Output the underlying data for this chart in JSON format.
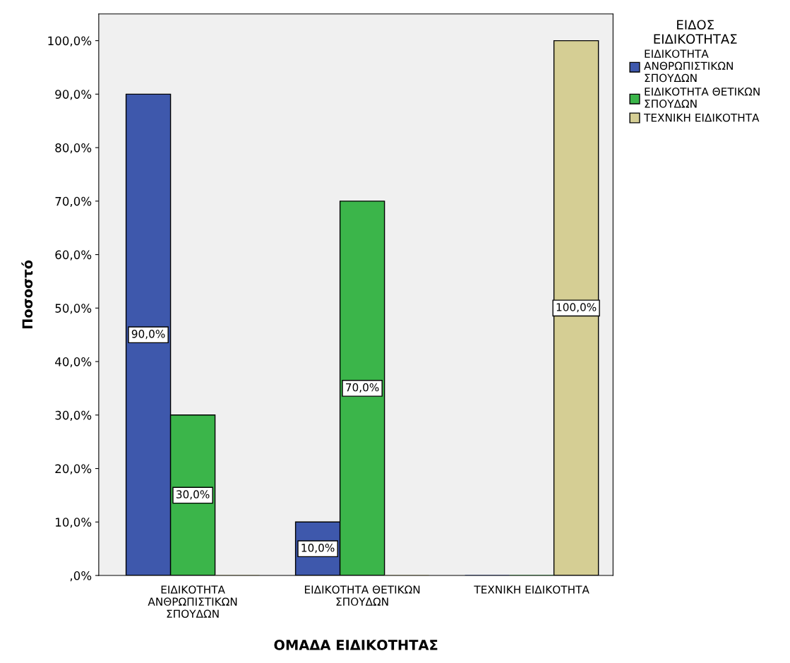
{
  "chart_data": {
    "type": "bar",
    "xlabel": "ΟΜΑΔΑ ΕΙΔΙΚΟΤΗΤΑΣ",
    "ylabel": "Ποσοστό",
    "legend_title": "ΕΙΔΟΣ\nΕΙΔΙΚΟΤΗΤΑΣ",
    "legend": "top right",
    "categories": [
      "ΕΙΔΙΚΟΤΗΤΑ\nΑΝΘΡΩΠΙΣΤΙΚΩΝ\nΣΠΟΥΔΩΝ",
      "ΕΙΔΙΚΟΤΗΤΑ ΘΕΤΙΚΩΝ\nΣΠΟΥΔΩΝ",
      "ΤΕΧΝΙΚΗ ΕΙΔΙΚΟΤΗΤΑ"
    ],
    "series": [
      {
        "name": "ΕΙΔΙΚΟΤΗΤΑ\nΑΝΘΡΩΠΙΣΤΙΚΩΝ\nΣΠΟΥΔΩΝ",
        "color": "#3e58ac",
        "values": [
          90,
          10,
          0
        ],
        "value_labels": [
          "90,0%",
          "10,0%",
          null
        ]
      },
      {
        "name": "ΕΙΔΙΚΟΤΗΤΑ ΘΕΤΙΚΩΝ\nΣΠΟΥΔΩΝ",
        "color": "#3bb54a",
        "values": [
          30,
          70,
          0
        ],
        "value_labels": [
          "30,0%",
          "70,0%",
          null
        ]
      },
      {
        "name": "ΤΕΧΝΙΚΗ ΕΙΔΙΚΟΤΗΤΑ",
        "color": "#d5ce94",
        "values": [
          0,
          0,
          100
        ],
        "value_labels": [
          null,
          null,
          "100,0%"
        ]
      }
    ],
    "ylim": [
      0,
      105
    ],
    "yticks": [
      {
        "value": 0,
        "label": ",0%"
      },
      {
        "value": 10,
        "label": "10,0%"
      },
      {
        "value": 20,
        "label": "20,0%"
      },
      {
        "value": 30,
        "label": "30,0%"
      },
      {
        "value": 40,
        "label": "40,0%"
      },
      {
        "value": 50,
        "label": "50,0%"
      },
      {
        "value": 60,
        "label": "60,0%"
      },
      {
        "value": 70,
        "label": "70,0%"
      },
      {
        "value": 80,
        "label": "80,0%"
      },
      {
        "value": 90,
        "label": "90,0%"
      },
      {
        "value": 100,
        "label": "100,0%"
      }
    ],
    "grid": false
  }
}
